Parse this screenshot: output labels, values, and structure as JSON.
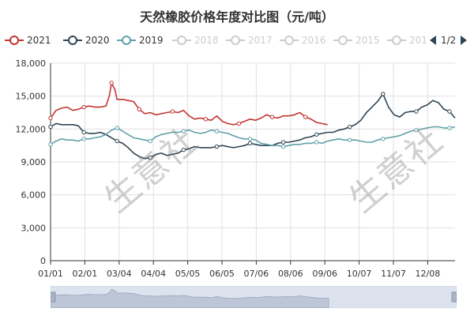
{
  "title": "天然橡胶价格年度对比图（元/吨）",
  "watermark": "生意社",
  "legend": {
    "items": [
      {
        "label": "2021",
        "color": "#c23531",
        "active": true
      },
      {
        "label": "2020",
        "color": "#2f4554",
        "active": true
      },
      {
        "label": "2019",
        "color": "#61a0a8",
        "active": true
      },
      {
        "label": "2018",
        "color": "#cccccc",
        "active": false
      },
      {
        "label": "2017",
        "color": "#cccccc",
        "active": false
      },
      {
        "label": "2016",
        "color": "#cccccc",
        "active": false
      },
      {
        "label": "2015",
        "color": "#cccccc",
        "active": false
      },
      {
        "label": "201",
        "color": "#cccccc",
        "active": false
      }
    ],
    "page": "1/2"
  },
  "chart_data": {
    "type": "line",
    "title": "天然橡胶价格年度对比图（元/吨）",
    "xlabel": "",
    "ylabel": "",
    "x_ticks": [
      "01/01",
      "02/01",
      "03/04",
      "04/04",
      "05/05",
      "06/05",
      "07/06",
      "08/06",
      "09/06",
      "10/07",
      "11/07",
      "12/08"
    ],
    "y_ticks": [
      "0",
      "3,000",
      "6,000",
      "9,000",
      "12,000",
      "15,000",
      "18,000"
    ],
    "ylim": [
      0,
      18000
    ],
    "xlim": [
      0,
      365
    ],
    "grid": true,
    "legend_position": "top-left",
    "series": [
      {
        "name": "2021",
        "color": "#c23531",
        "x": [
          0,
          5,
          10,
          15,
          20,
          25,
          30,
          35,
          40,
          45,
          50,
          53,
          55,
          58,
          60,
          65,
          70,
          75,
          80,
          85,
          90,
          95,
          100,
          105,
          110,
          115,
          120,
          125,
          130,
          135,
          140,
          145,
          150,
          155,
          160,
          165,
          170,
          175,
          180,
          185,
          190,
          195,
          200,
          205,
          210,
          215,
          220,
          225,
          230,
          235,
          240,
          245,
          250
        ],
        "y": [
          13000,
          13700,
          13900,
          14000,
          13700,
          13800,
          14000,
          14100,
          14000,
          14000,
          14100,
          15000,
          16200,
          15600,
          14700,
          14700,
          14600,
          14500,
          13800,
          13400,
          13500,
          13300,
          13400,
          13500,
          13600,
          13500,
          13700,
          13200,
          12900,
          13000,
          12900,
          12800,
          13200,
          12700,
          12500,
          12400,
          12500,
          12700,
          12900,
          12800,
          13000,
          13300,
          13100,
          13000,
          13200,
          13200,
          13300,
          13500,
          13100,
          12900,
          12600,
          12500,
          12400
        ]
      },
      {
        "name": "2020",
        "color": "#2f4554",
        "x": [
          0,
          5,
          10,
          15,
          20,
          25,
          30,
          35,
          40,
          45,
          50,
          55,
          60,
          65,
          70,
          75,
          80,
          85,
          90,
          95,
          100,
          105,
          110,
          115,
          120,
          125,
          130,
          135,
          140,
          145,
          150,
          155,
          160,
          165,
          170,
          175,
          180,
          185,
          190,
          195,
          200,
          205,
          210,
          215,
          220,
          225,
          230,
          235,
          240,
          245,
          250,
          255,
          260,
          265,
          270,
          275,
          280,
          285,
          290,
          295,
          300,
          305,
          310,
          315,
          320,
          325,
          330,
          335,
          340,
          345,
          350,
          355,
          360,
          365
        ],
        "y": [
          12200,
          12500,
          12400,
          12400,
          12400,
          12300,
          11700,
          11600,
          11600,
          11700,
          11500,
          11200,
          10900,
          10700,
          10300,
          9800,
          9500,
          9300,
          9400,
          9700,
          9800,
          9600,
          9700,
          9800,
          10100,
          10200,
          10400,
          10300,
          10300,
          10300,
          10400,
          10500,
          10400,
          10300,
          10400,
          10500,
          10700,
          10600,
          10500,
          10500,
          10500,
          10700,
          10800,
          10800,
          10900,
          11000,
          11200,
          11300,
          11500,
          11600,
          11700,
          11700,
          11900,
          12000,
          12200,
          12400,
          12800,
          13500,
          14000,
          14500,
          15200,
          14000,
          13300,
          13100,
          13500,
          13600,
          13600,
          14000,
          14200,
          14600,
          14400,
          13800,
          13600,
          13000
        ]
      },
      {
        "name": "2019",
        "color": "#61a0a8",
        "x": [
          0,
          5,
          10,
          15,
          20,
          25,
          30,
          35,
          40,
          45,
          50,
          55,
          60,
          65,
          70,
          75,
          80,
          85,
          90,
          95,
          100,
          105,
          110,
          115,
          120,
          125,
          130,
          135,
          140,
          145,
          150,
          155,
          160,
          165,
          170,
          175,
          180,
          185,
          190,
          195,
          200,
          205,
          210,
          215,
          220,
          225,
          230,
          235,
          240,
          245,
          250,
          255,
          260,
          265,
          270,
          275,
          280,
          285,
          290,
          295,
          300,
          305,
          310,
          315,
          320,
          325,
          330,
          335,
          340,
          345,
          350,
          355,
          360,
          365
        ],
        "y": [
          10600,
          10900,
          11100,
          11000,
          11000,
          10900,
          11100,
          11100,
          11200,
          11300,
          11500,
          11900,
          12100,
          11800,
          11500,
          11200,
          11100,
          11000,
          10900,
          11300,
          11500,
          11600,
          11700,
          11700,
          11800,
          11900,
          11700,
          11600,
          11700,
          11900,
          11800,
          11700,
          11600,
          11400,
          11200,
          11100,
          11100,
          11000,
          10700,
          10600,
          10500,
          10500,
          10400,
          10500,
          10600,
          10600,
          10700,
          10700,
          10800,
          10700,
          10900,
          11000,
          11100,
          11000,
          11000,
          11000,
          10900,
          10800,
          10800,
          11000,
          11100,
          11200,
          11300,
          11400,
          11600,
          11800,
          11900,
          12000,
          12100,
          12200,
          12200,
          12100,
          12100,
          12200
        ]
      }
    ]
  }
}
